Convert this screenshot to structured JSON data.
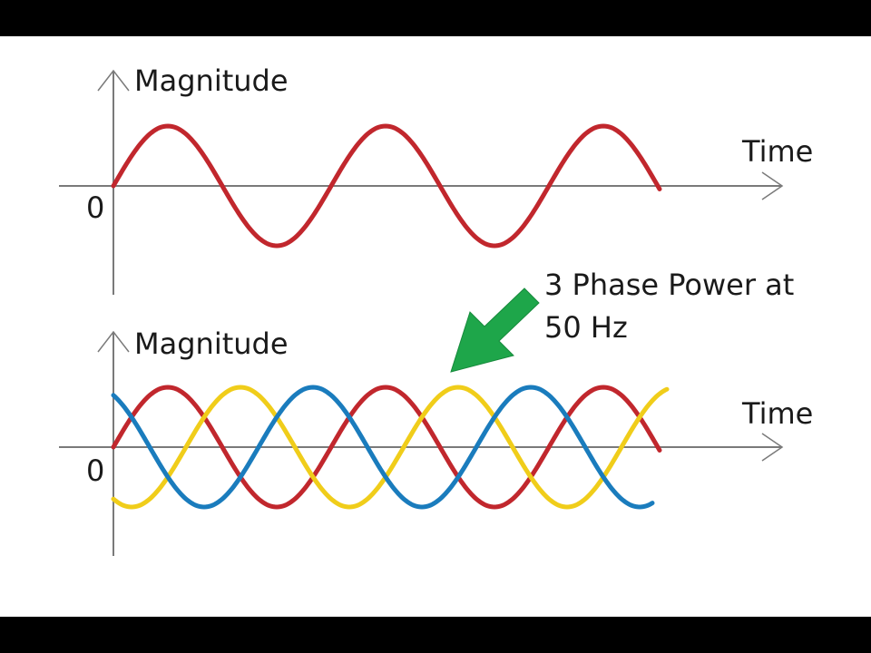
{
  "colors": {
    "phase_1": "#c1272d",
    "phase_2": "#f0cd1a",
    "phase_3": "#1a7cbd",
    "arrow": "#1ea64a",
    "axis": "#7a7a7a"
  },
  "annotation": {
    "line1": "3 Phase Power at",
    "line2": "50 Hz"
  },
  "chart_data": [
    {
      "type": "line",
      "ylabel": "Magnitude",
      "xlabel": "Time",
      "origin_label": "0",
      "series": [
        {
          "color": "#c1272d",
          "phase_deg": 0
        }
      ],
      "cycles": 2.5
    },
    {
      "type": "line",
      "ylabel": "Magnitude",
      "xlabel": "Time",
      "origin_label": "0",
      "series": [
        {
          "color": "#c1272d",
          "phase_deg": 0
        },
        {
          "color": "#f0cd1a",
          "phase_deg": -120
        },
        {
          "color": "#1a7cbd",
          "phase_deg": -240
        }
      ],
      "cycles": 2.5
    }
  ]
}
